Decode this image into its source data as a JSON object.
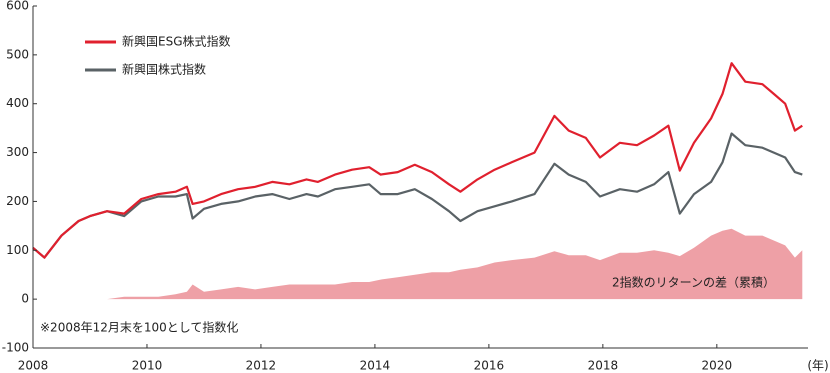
{
  "chart_data": {
    "type": "line",
    "x": [
      2008.0,
      2008.2,
      2008.5,
      2008.8,
      2009.0,
      2009.3,
      2009.6,
      2009.9,
      2010.2,
      2010.5,
      2010.7,
      2010.8,
      2011.0,
      2011.3,
      2011.6,
      2011.9,
      2012.2,
      2012.5,
      2012.8,
      2013.0,
      2013.3,
      2013.6,
      2013.9,
      2014.1,
      2014.4,
      2014.7,
      2015.0,
      2015.3,
      2015.5,
      2015.8,
      2016.1,
      2016.4,
      2016.8,
      2017.15,
      2017.4,
      2017.7,
      2017.95,
      2018.3,
      2018.6,
      2018.9,
      2019.15,
      2019.35,
      2019.6,
      2019.9,
      2020.1,
      2020.26,
      2020.5,
      2020.8,
      2021.0,
      2021.2,
      2021.37,
      2021.5
    ],
    "series": [
      {
        "name": "2指数のリターンの差（累積）",
        "kind": "area",
        "color": "#eea0a6",
        "values": [
          0,
          0,
          0,
          0,
          0,
          0,
          5,
          5,
          5,
          10,
          15,
          30,
          15,
          20,
          25,
          20,
          25,
          30,
          30,
          30,
          30,
          35,
          35,
          40,
          45,
          50,
          55,
          55,
          60,
          65,
          75,
          80,
          85,
          98,
          90,
          90,
          80,
          95,
          95,
          100,
          95,
          88,
          105,
          130,
          140,
          144,
          130,
          130,
          120,
          110,
          85,
          100
        ]
      },
      {
        "name": "新興国株式指数",
        "kind": "line",
        "color": "#5a6266",
        "values": [
          105,
          85,
          130,
          160,
          170,
          180,
          170,
          200,
          210,
          210,
          215,
          165,
          185,
          195,
          200,
          210,
          215,
          205,
          215,
          210,
          225,
          230,
          235,
          215,
          215,
          225,
          205,
          180,
          160,
          180,
          190,
          200,
          215,
          277,
          255,
          240,
          210,
          225,
          220,
          235,
          260,
          175,
          215,
          240,
          280,
          339,
          315,
          310,
          300,
          290,
          260,
          255
        ]
      },
      {
        "name": "新興国ESG株式指数",
        "kind": "line",
        "color": "#e0202e",
        "values": [
          105,
          85,
          130,
          160,
          170,
          180,
          175,
          205,
          215,
          220,
          230,
          195,
          200,
          215,
          225,
          230,
          240,
          235,
          245,
          240,
          255,
          265,
          270,
          255,
          260,
          275,
          260,
          235,
          220,
          245,
          265,
          280,
          300,
          375,
          345,
          330,
          290,
          320,
          315,
          335,
          355,
          263,
          320,
          370,
          420,
          483,
          445,
          440,
          420,
          400,
          345,
          355
        ]
      }
    ],
    "legend_order": [
      2,
      1
    ],
    "xlim": [
      2008,
      2021.6
    ],
    "xticks": [
      2008,
      2010,
      2012,
      2014,
      2016,
      2018,
      2020
    ],
    "ylim": [
      -100,
      600
    ],
    "yticks": [
      -100,
      0,
      100,
      200,
      300,
      400,
      500,
      600
    ],
    "x_unit_label": "(年)",
    "note": "※2008年12月末を100として指数化"
  }
}
